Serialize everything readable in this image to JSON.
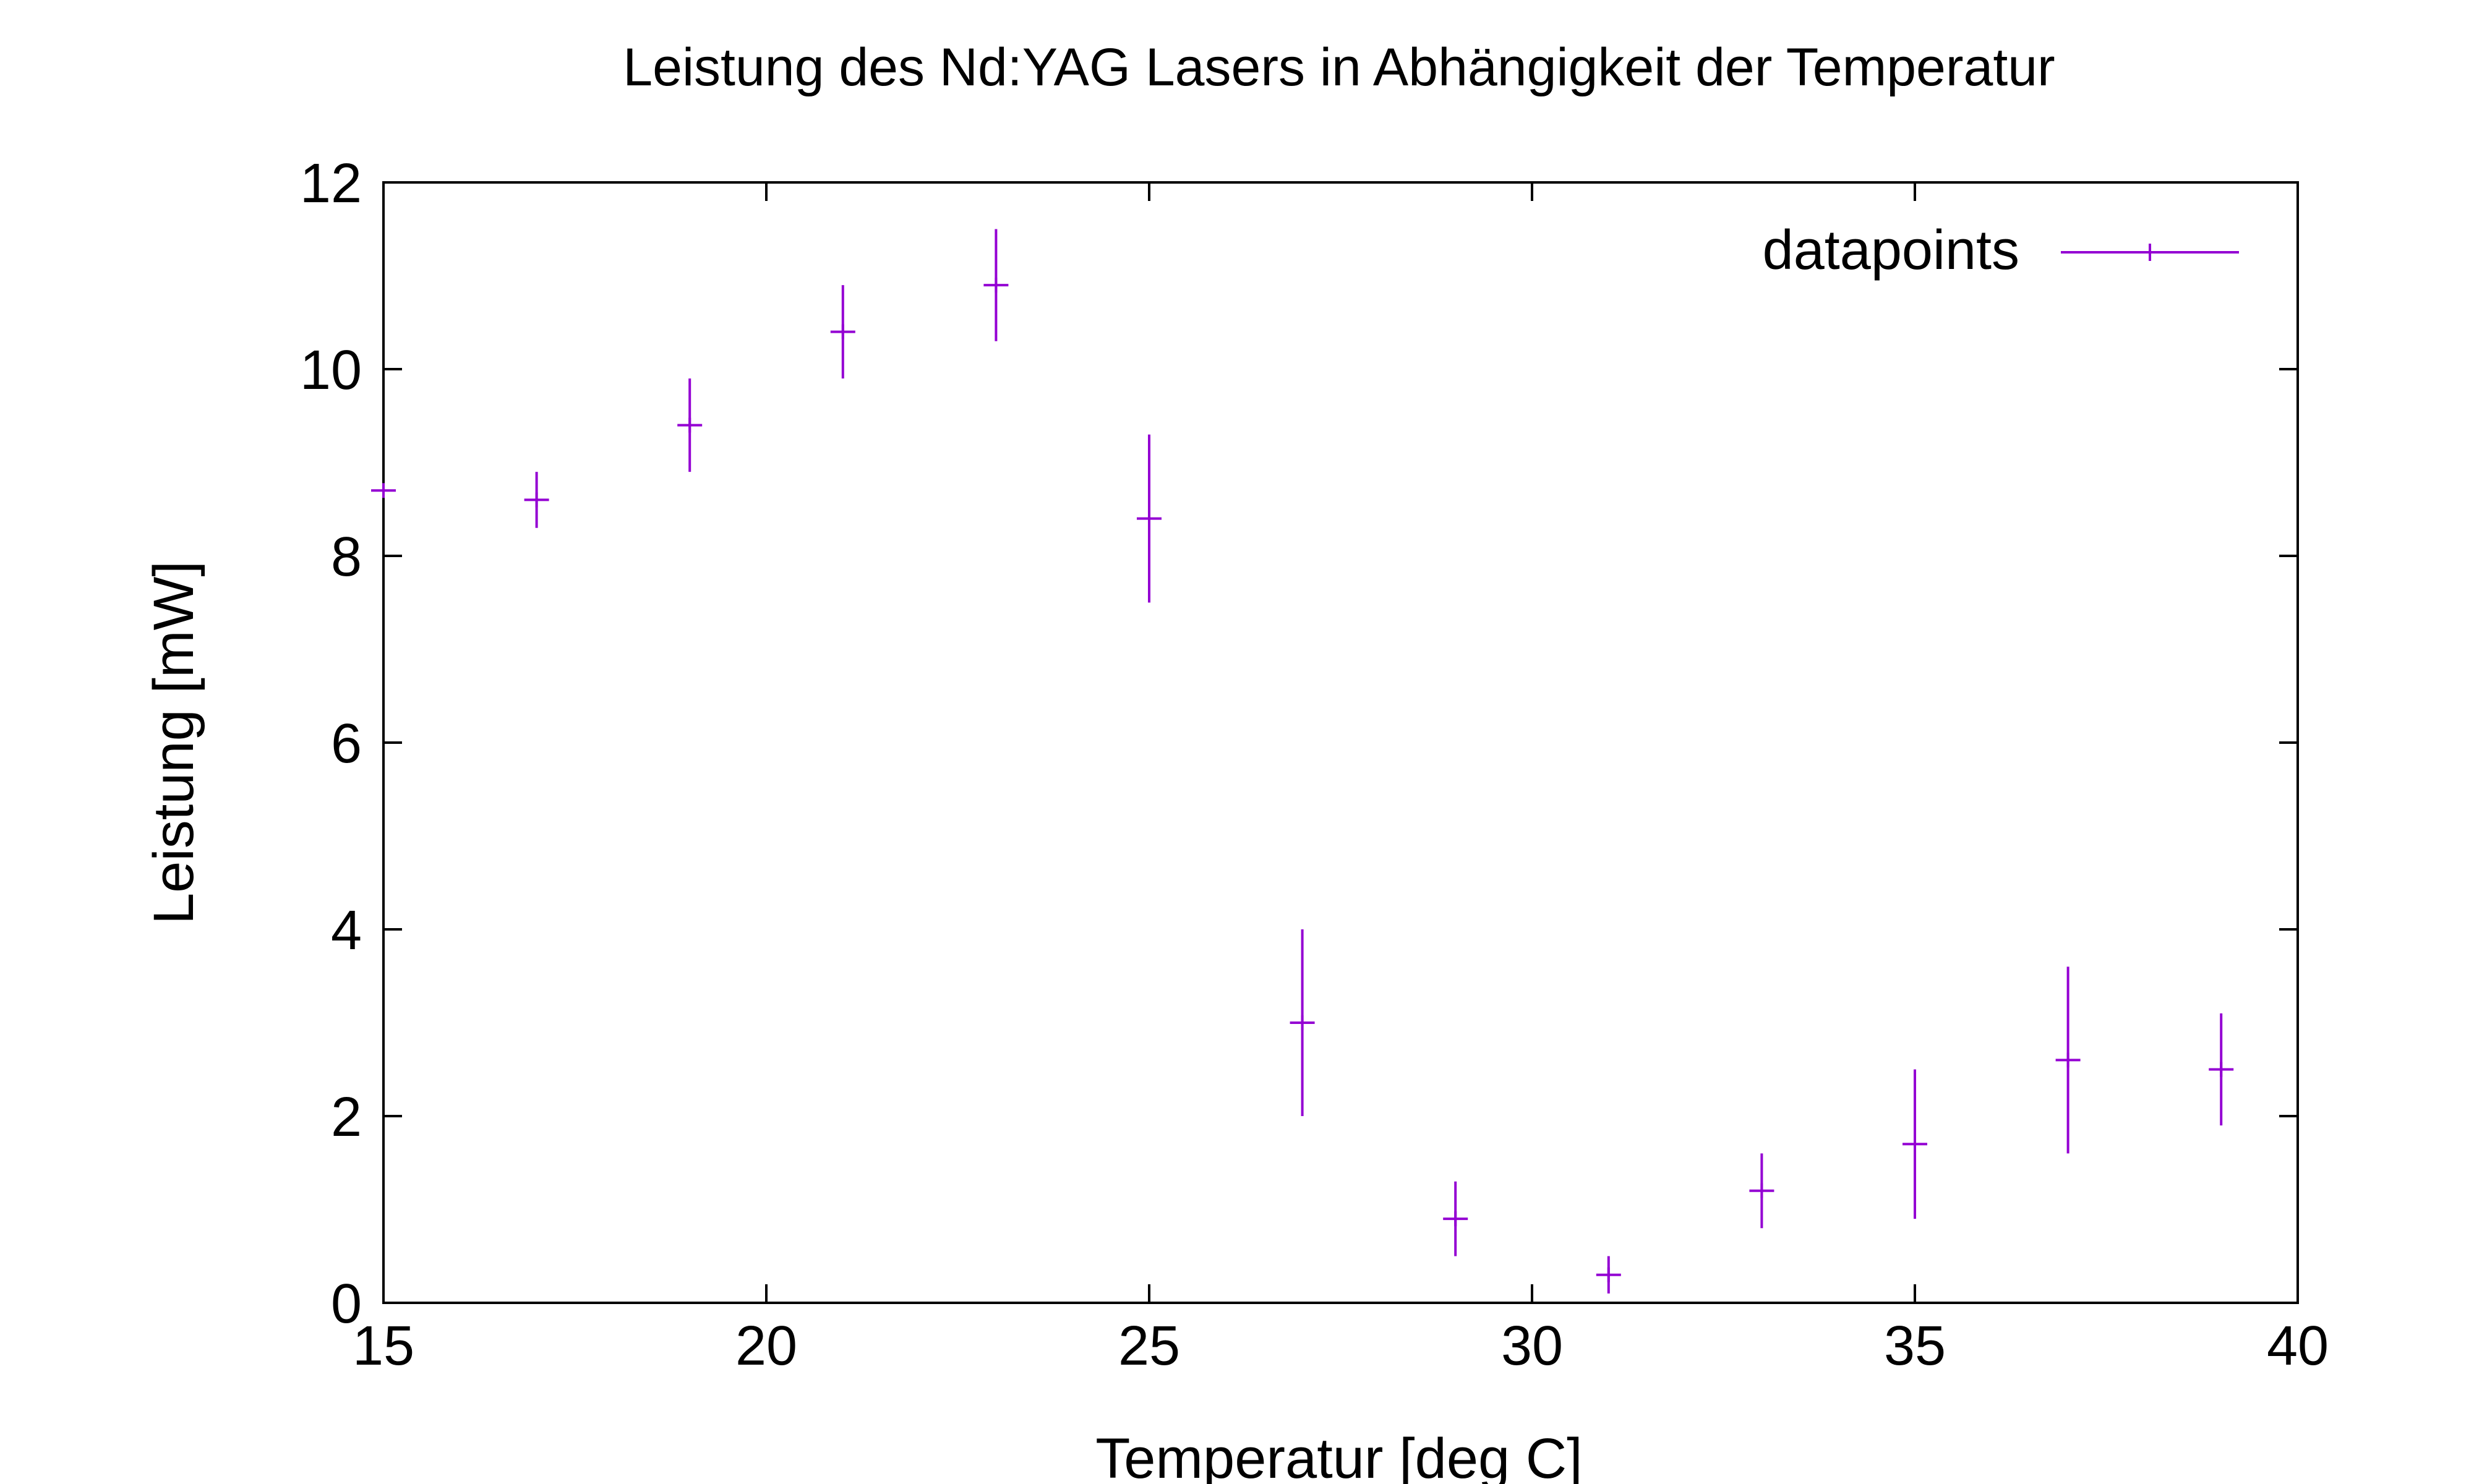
{
  "chart_data": {
    "type": "scatter",
    "title": "Leistung des Nd:YAG Lasers in Abhängigkeit der Temperatur",
    "xlabel": "Temperatur [deg C]",
    "ylabel": "Leistung [mW]",
    "xlim": [
      15,
      40
    ],
    "ylim": [
      0,
      12
    ],
    "xticks": [
      15,
      20,
      25,
      30,
      35,
      40
    ],
    "yticks": [
      0,
      2,
      4,
      6,
      8,
      10,
      12
    ],
    "xtick_labels": [
      "15",
      "20",
      "25",
      "30",
      "35",
      "40"
    ],
    "ytick_labels": [
      "0",
      "2",
      "4",
      "6",
      "8",
      "10",
      "12"
    ],
    "grid": false,
    "legend_position": "top-right",
    "color": "#9400d3",
    "series": [
      {
        "name": "datapoints",
        "marker": "plus",
        "error_bars": true,
        "points": [
          {
            "x": 15,
            "y": 8.7,
            "err": 0.0
          },
          {
            "x": 17,
            "y": 8.6,
            "err": 0.3
          },
          {
            "x": 19,
            "y": 9.4,
            "err": 0.5
          },
          {
            "x": 21,
            "y": 10.4,
            "err": 0.5
          },
          {
            "x": 23,
            "y": 10.9,
            "err": 0.6
          },
          {
            "x": 25,
            "y": 8.4,
            "err": 0.9
          },
          {
            "x": 27,
            "y": 3.0,
            "err": 1.0
          },
          {
            "x": 29,
            "y": 0.9,
            "err": 0.4
          },
          {
            "x": 31,
            "y": 0.3,
            "err": 0.2
          },
          {
            "x": 33,
            "y": 1.2,
            "err": 0.4
          },
          {
            "x": 35,
            "y": 1.7,
            "err": 0.8
          },
          {
            "x": 37,
            "y": 2.6,
            "err": 1.0
          },
          {
            "x": 39,
            "y": 2.5,
            "err": 0.6
          }
        ]
      }
    ]
  }
}
